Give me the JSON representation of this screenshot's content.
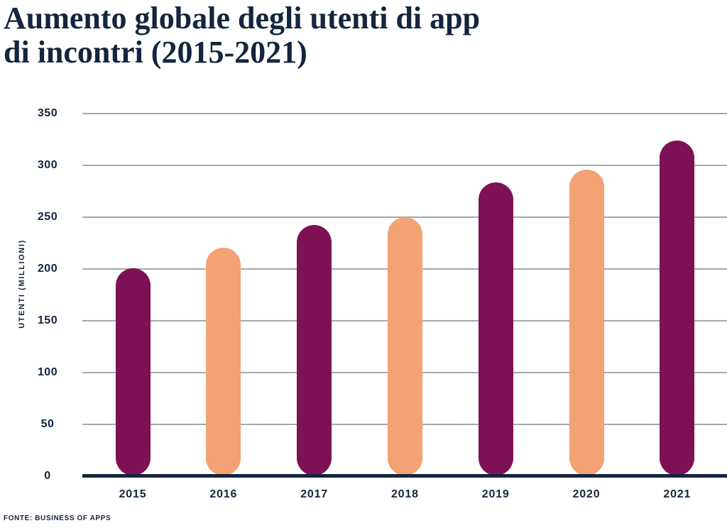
{
  "title": {
    "lines": [
      "Aumento globale degli utenti di app",
      "di incontri (2015-2021)"
    ]
  },
  "source": "FONTE: BUSINESS OF APPS",
  "chart_data": {
    "type": "bar",
    "title": "Aumento globale degli utenti di app di incontri (2015-2021)",
    "categories": [
      "2015",
      "2016",
      "2017",
      "2018",
      "2019",
      "2020",
      "2021"
    ],
    "values": [
      200,
      220,
      242,
      249,
      283,
      295,
      323
    ],
    "xlabel": "",
    "ylabel": "UTENTI (MILLIONI)",
    "ylim": [
      0,
      350
    ],
    "yticks": [
      0,
      50,
      100,
      150,
      200,
      250,
      300,
      350
    ],
    "grid": true,
    "legend": false,
    "bar_colors": [
      "#7E1156",
      "#F2A273",
      "#7E1156",
      "#F2A273",
      "#7E1156",
      "#F2A273",
      "#7E1156"
    ],
    "colors": {
      "purple": "#7E1156",
      "peach": "#F2A273",
      "navy": "#14253E",
      "gridline": "#A5A9AE",
      "background": "#FFFFFF"
    }
  }
}
